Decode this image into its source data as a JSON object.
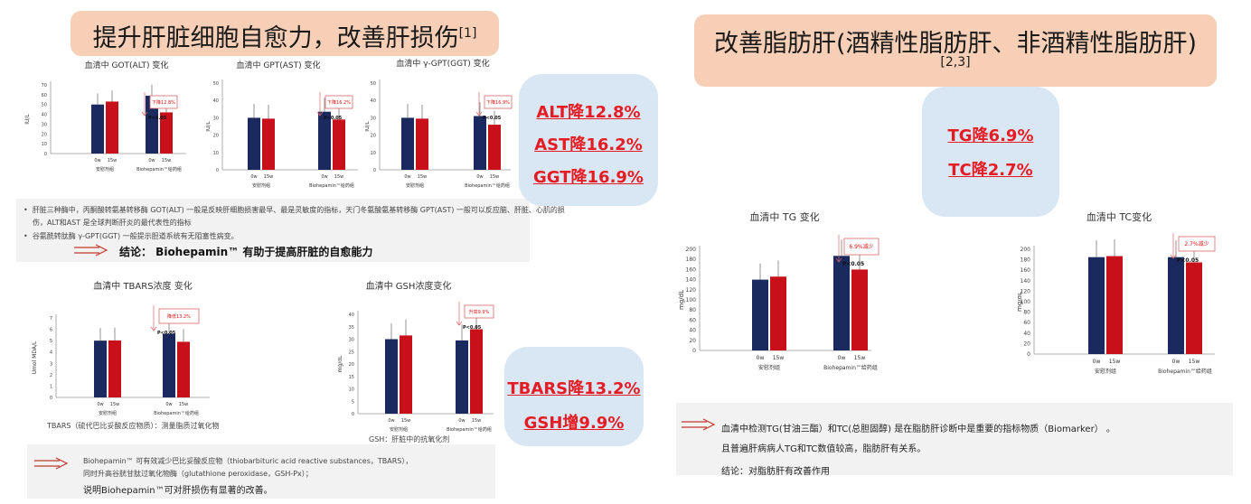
{
  "left_title": {
    "text": "提升肝脏细胞自愈力，改善肝损伤",
    "ref": "[1]"
  },
  "right_title": {
    "text": "改善脂肪肝(酒精性脂肪肝、非酒精性脂肪肝)",
    "ref": "[2,3]"
  },
  "bubble_liver": [
    "ALT降12.8%",
    "AST降16.2%",
    "GGT降16.9%"
  ],
  "bubble_ox": [
    "TBARS降13.2%",
    "GSH增9.9%"
  ],
  "bubble_lipid": [
    "TG降6.9%",
    "TC降2.7%"
  ],
  "liver_notes": {
    "b1": "肝脏三种酶中，丙酮酸转氨基转移酶 GOT(ALT) 一般是反映肝细胞损害最早、最是灵敏度的指标，天门冬氨酸氨基转移酶 GPT(AST) 一般可以反应脑、肝脏、心肌的损",
    "b1b": "伤，ALT和AST 是全球判断肝炎的最代表性的指标",
    "b2": "谷氨酰转肽酶 γ-GPT(GGT) 一般提示胆道系统有无阻塞性病变。",
    "conclusion": "结论：  Biohepamin™ 有助于提高肝脏的自愈能力"
  },
  "ox_notes": {
    "tbars_footnote": "TBARS（硫代巴比妥酸反应物质）：测量脂质过氧化物",
    "gsh_footnote": "GSH：肝脏中的抗氧化剂",
    "line1": "Biohepamin™ 可有效减少巴比妥酸反应物（thiobarbituric acid reactive substances，TBARS），",
    "line2": "同时升高谷胱甘肽过氧化物酶（glutathione peroxidase，GSH-Px）；",
    "line3": "说明Biohepamin™可对肝损伤有显著的改善。"
  },
  "lipid_notes": {
    "line1": "血清中检测TG(甘油三酯）和TC(总胆固醇) 是在脂肪肝诊断中是重要的指标物质（Biomarker）  。",
    "line2": "且普遍肝病病人TG和TC数值较高，脂肪肝有关系。",
    "line3": "结论：对脂肪肝有改善作用"
  },
  "chart_data": [
    {
      "type": "bar",
      "title": "血清中 GOT(ALT) 变化",
      "ylabel": "IU/L",
      "ylim": [
        0,
        70
      ],
      "yticks": [
        0,
        10,
        20,
        30,
        40,
        50,
        60,
        70
      ],
      "groups": [
        "安慰剂组",
        "Biohepamin™给药组"
      ],
      "times": [
        "0w",
        "15w"
      ],
      "series": [
        {
          "values": [
            50,
            53
          ]
        },
        {
          "values": [
            59,
            42
          ]
        }
      ],
      "callout": "下降12.8%",
      "pvalue": "P<0.05"
    },
    {
      "type": "bar",
      "title": "血清中 GPT(AST) 变化",
      "ylabel": "IU/L",
      "ylim": [
        0,
        50
      ],
      "yticks": [
        0,
        10,
        20,
        30,
        40,
        50
      ],
      "groups": [
        "安慰剂组",
        "Biohepamin™给药组"
      ],
      "times": [
        "0w",
        "15w"
      ],
      "series": [
        {
          "values": [
            30,
            29.5
          ]
        },
        {
          "values": [
            33.5,
            29
          ]
        }
      ],
      "callout": "下降16.2%",
      "pvalue": "P<0.05"
    },
    {
      "type": "bar",
      "title": "血清中 γ-GPT(GGT) 变化",
      "ylabel": "IU/L",
      "ylim": [
        0,
        50
      ],
      "yticks": [
        0,
        10,
        20,
        30,
        40,
        50
      ],
      "groups": [
        "安慰剂组",
        "Biohepamin™给药组"
      ],
      "times": [
        "0w",
        "15w"
      ],
      "series": [
        {
          "values": [
            30,
            29.5
          ]
        },
        {
          "values": [
            31,
            26
          ]
        }
      ],
      "callout": "下降16.9%",
      "pvalue": "P<0.05"
    },
    {
      "type": "bar",
      "title": "血清中 TBARS浓度 变化",
      "ylabel": "Umol MDA/L",
      "ylim": [
        0,
        7
      ],
      "yticks": [
        0,
        1,
        2,
        3,
        4,
        5,
        6,
        7
      ],
      "groups": [
        "安慰剂组",
        "Biohepamin™给药组"
      ],
      "times": [
        "0w",
        "15w"
      ],
      "series": [
        {
          "values": [
            5,
            5.02
          ]
        },
        {
          "values": [
            5.6,
            4.9
          ]
        }
      ],
      "callout": "降低13.2%",
      "pvalue": "P<0.05"
    },
    {
      "type": "bar",
      "title": "血清中 GSH浓度变化",
      "ylabel": "mg/dL",
      "ylim": [
        0,
        40
      ],
      "yticks": [
        0,
        5,
        10,
        15,
        20,
        25,
        30,
        35,
        40
      ],
      "groups": [
        "安慰剂组",
        "Biohepamin™给药组"
      ],
      "times": [
        "0w",
        "15w"
      ],
      "series": [
        {
          "values": [
            30,
            31.5
          ]
        },
        {
          "values": [
            29.5,
            34
          ]
        }
      ],
      "callout": "升高9.9%",
      "pvalue": "P<0.05"
    },
    {
      "type": "bar",
      "title": "血清中 TG 变化",
      "ylabel": "mg/dL",
      "ylim": [
        0,
        200
      ],
      "yticks": [
        0,
        20,
        40,
        60,
        80,
        100,
        120,
        140,
        160,
        180,
        200
      ],
      "groups": [
        "安慰剂组",
        "Biohepamin™给药组"
      ],
      "times": [
        "0w",
        "15w"
      ],
      "series": [
        {
          "values": [
            140,
            146
          ]
        },
        {
          "values": [
            187,
            160
          ]
        }
      ],
      "callout": "6.9%减少",
      "pvalue": "P<0.05"
    },
    {
      "type": "bar",
      "title": "血清中 TC变化",
      "ylabel": "mg/dL",
      "ylim": [
        0,
        200
      ],
      "yticks": [
        0,
        20,
        40,
        60,
        80,
        100,
        120,
        140,
        160,
        180,
        200
      ],
      "groups": [
        "安慰剂组",
        "Biohepamin™给药组"
      ],
      "times": [
        "0w",
        "15w"
      ],
      "series": [
        {
          "values": [
            185,
            187
          ]
        },
        {
          "values": [
            185,
            175
          ]
        }
      ],
      "callout": "2.7%减少",
      "pvalue": "P<0.05"
    }
  ]
}
